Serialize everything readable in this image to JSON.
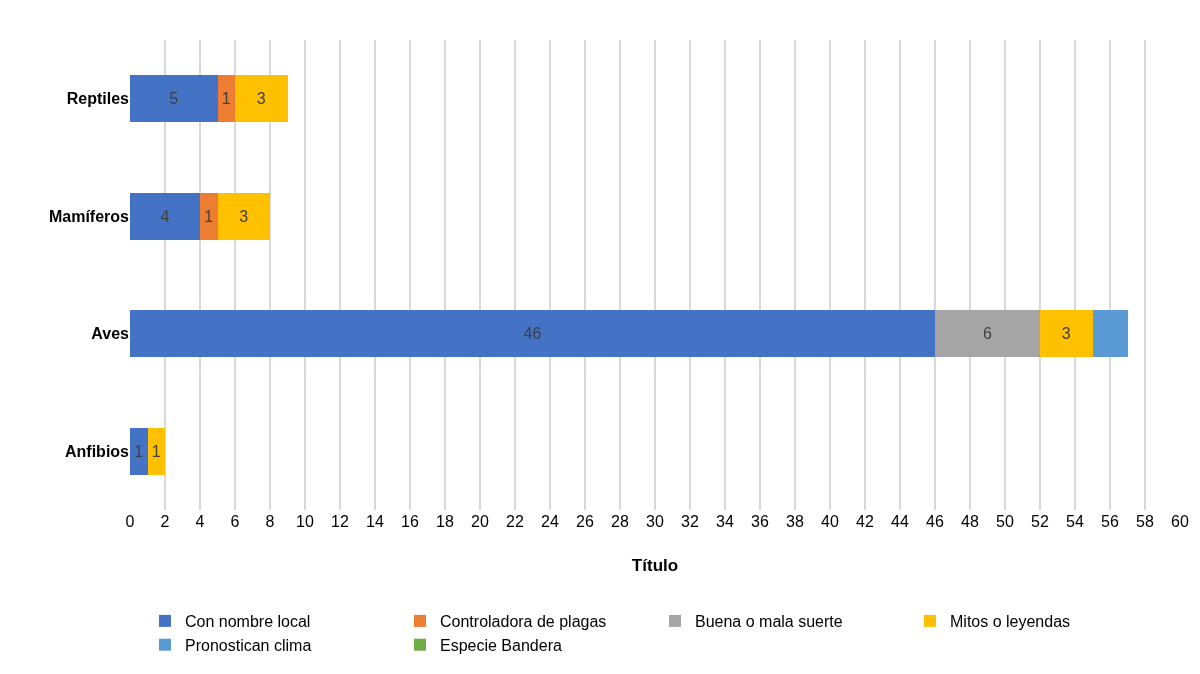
{
  "chart_data": {
    "type": "bar",
    "orientation": "horizontal",
    "stacked": true,
    "xlabel": "Título",
    "categories": [
      "Reptiles",
      "Mamíferos",
      "Aves",
      "Anfibios"
    ],
    "series": [
      {
        "name": "Con nombre local",
        "color": "#4472c4",
        "values": [
          5,
          4,
          46,
          1
        ],
        "value_labels": [
          "5",
          "4",
          "46",
          "1"
        ]
      },
      {
        "name": "Controladora de plagas",
        "color": "#ed7d31",
        "values": [
          1,
          1,
          null,
          null
        ],
        "value_labels": [
          "1",
          "1",
          null,
          null
        ]
      },
      {
        "name": "Buena o mala suerte",
        "color": "#a5a5a5",
        "values": [
          null,
          null,
          6,
          null
        ],
        "value_labels": [
          null,
          null,
          "6",
          null
        ]
      },
      {
        "name": "Mitos o leyendas",
        "color": "#ffc000",
        "values": [
          3,
          3,
          3,
          1
        ],
        "value_labels": [
          "3",
          "3",
          "3",
          "1"
        ]
      },
      {
        "name": "Pronostican clima",
        "color": "#5b9bd5",
        "values": [
          null,
          null,
          2,
          null
        ],
        "value_labels": [
          null,
          null,
          null,
          null
        ]
      },
      {
        "name": "Especie Bandera",
        "color": "#70ad47",
        "values": [
          null,
          null,
          null,
          null
        ],
        "value_labels": [
          null,
          null,
          null,
          null
        ]
      }
    ],
    "xlim": [
      0,
      60
    ],
    "xticks": [
      0,
      2,
      4,
      6,
      8,
      10,
      12,
      14,
      16,
      18,
      20,
      22,
      24,
      26,
      28,
      30,
      32,
      34,
      36,
      38,
      40,
      42,
      44,
      46,
      48,
      50,
      52,
      54,
      56,
      58,
      60
    ],
    "grid": "x",
    "legend": "bottom"
  }
}
